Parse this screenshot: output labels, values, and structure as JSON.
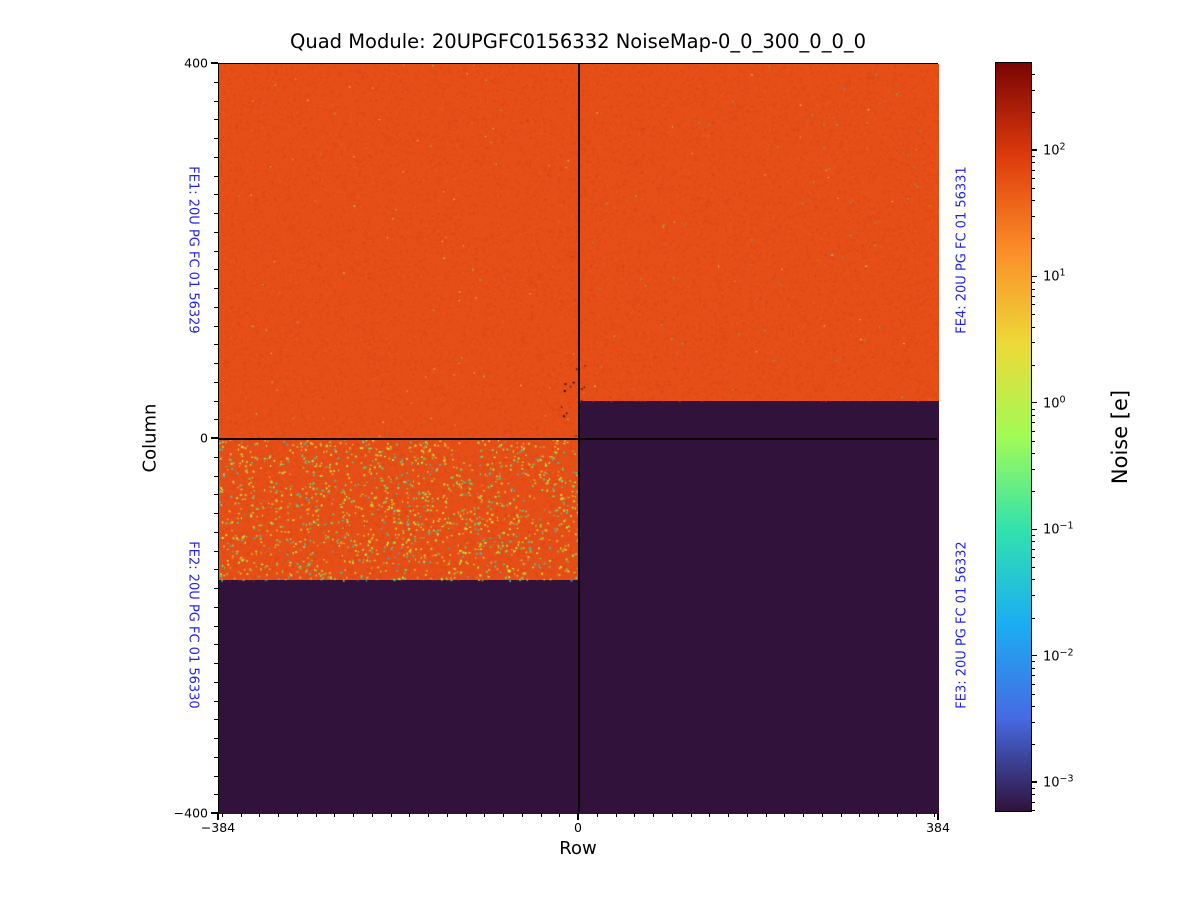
{
  "figure": {
    "title": "Quad Module: 20UPGFC0156332 NoiseMap-0_0_300_0_0_0",
    "xlabel": "Row",
    "ylabel": "Column",
    "colorbar_label": "Noise [e]"
  },
  "axes": {
    "x_ticks": [
      "−384",
      "0",
      "384"
    ],
    "y_ticks": [
      "400",
      "0",
      "−400"
    ]
  },
  "fe_labels": {
    "fe1": "FE1: 20U PG FC 01 56329",
    "fe2": "FE2: 20U PG FC 01 56330",
    "fe3": "FE3: 20U PG FC 01 56332",
    "fe4": "FE4: 20U PG FC 01 56331"
  },
  "colorbar": {
    "base": "10",
    "tick_exponents": [
      "2",
      "1",
      "0",
      "−1",
      "−2",
      "−3"
    ],
    "scale": "log",
    "colormap": "turbo"
  },
  "colors": {
    "noisy_region_orange": "#e54e17",
    "masked_region_dark": "#30123b",
    "fe_label_blue": "#2222ee",
    "colormap_low": "#30123b",
    "colormap_high": "#7a0403"
  },
  "chart_data": {
    "type": "heatmap",
    "title": "Quad Module: 20UPGFC0156332 NoiseMap-0_0_300_0_0_0",
    "xlabel": "Row",
    "ylabel": "Column",
    "xlim": [
      -384,
      384
    ],
    "ylim": [
      -400,
      400
    ],
    "x_tick_values": [
      -384,
      0,
      384
    ],
    "y_tick_values": [
      400,
      0,
      -400
    ],
    "minor_tick_step": 20,
    "colorbar": {
      "label": "Noise [e]",
      "scale": "log",
      "tick_values": [
        100,
        10,
        1,
        0.1,
        0.01,
        0.001
      ],
      "approx_range": [
        0.0006,
        500
      ],
      "colormap": "turbo",
      "position": "right"
    },
    "regions": [
      {
        "name": "FE1",
        "row": [
          -384,
          0
        ],
        "column": [
          0,
          400
        ],
        "approx_noise_e": 35,
        "appearance": "uniform orange, sparse hot pixels"
      },
      {
        "name": "FE4",
        "row": [
          0,
          384
        ],
        "column": [
          40,
          400
        ],
        "approx_noise_e": 35,
        "appearance": "uniform orange, sparse hot pixels"
      },
      {
        "name": "FE4 masked band",
        "row": [
          0,
          384
        ],
        "column": [
          0,
          40
        ],
        "approx_noise_e": 0.0006,
        "appearance": "dark purple"
      },
      {
        "name": "FE2",
        "row": [
          -384,
          0
        ],
        "column": [
          -150,
          0
        ],
        "approx_noise_e": 35,
        "appearance": "orange with many yellow/green/cyan hot pixels"
      },
      {
        "name": "FE2 masked",
        "row": [
          -384,
          0
        ],
        "column": [
          -400,
          -150
        ],
        "approx_noise_e": 0.0006,
        "appearance": "dark purple"
      },
      {
        "name": "FE3",
        "row": [
          0,
          384
        ],
        "column": [
          -400,
          0
        ],
        "approx_noise_e": 0.0006,
        "appearance": "dark purple"
      }
    ]
  }
}
